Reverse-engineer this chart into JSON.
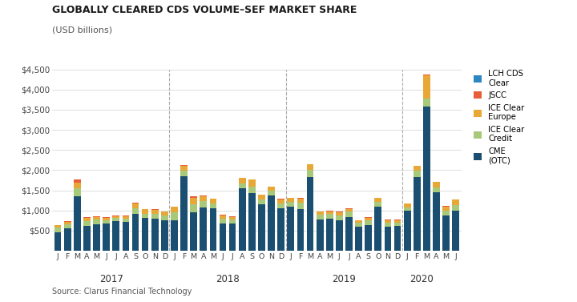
{
  "title": "GLOBALLY CLEARED CDS VOLUME–SEF MARKET SHARE",
  "subtitle": "(USD billions)",
  "source": "Source: Clarus Financial Technology",
  "ylim": [
    0,
    4500
  ],
  "yticks": [
    0,
    500,
    1000,
    1500,
    2000,
    2500,
    3000,
    3500,
    4000,
    4500
  ],
  "ytick_labels": [
    "",
    "$500",
    "$1,000",
    "$1,500",
    "$2,000",
    "$2,500",
    "$3,000",
    "$3,500",
    "$4,000",
    "$4,500"
  ],
  "months": [
    "J",
    "F",
    "M",
    "A",
    "M",
    "J",
    "J",
    "A",
    "S",
    "O",
    "N",
    "D",
    "J",
    "F",
    "M",
    "A",
    "M",
    "J",
    "J",
    "A",
    "S",
    "O",
    "N",
    "D",
    "J",
    "F",
    "M",
    "A",
    "M",
    "J",
    "J",
    "A",
    "S",
    "O",
    "N",
    "D",
    "J",
    "F",
    "M",
    "A",
    "M",
    "J"
  ],
  "year_labels": [
    [
      "2017",
      5.5
    ],
    [
      "2018",
      17.5
    ],
    [
      "2019",
      29.5
    ],
    [
      "2020",
      37.5
    ]
  ],
  "vlines": [
    12,
    24,
    36
  ],
  "stack_keys": [
    "CME (OTC)",
    "ICE Clear Credit",
    "ICE Clear Europe",
    "JSCC",
    "LCH CDS Clear"
  ],
  "stack_colors": [
    "#1b4f72",
    "#a8c87a",
    "#e8a838",
    "#e85d3a",
    "#2e86c1"
  ],
  "legend_labels": [
    "LCH CDS\nClear",
    "JSCC",
    "ICE Clear\nEurope",
    "ICE Clear\nCredit",
    "CME\n(OTC)"
  ],
  "legend_colors": [
    "#2e86c1",
    "#e85d3a",
    "#e8a838",
    "#a8c87a",
    "#1b4f72"
  ],
  "data": {
    "CME (OTC)": [
      460,
      555,
      1350,
      615,
      650,
      680,
      730,
      710,
      920,
      810,
      790,
      760,
      760,
      1840,
      950,
      1070,
      1050,
      680,
      670,
      1540,
      1440,
      1150,
      1380,
      1050,
      1090,
      1040,
      1830,
      770,
      790,
      750,
      830,
      590,
      630,
      1090,
      600,
      610,
      990,
      1830,
      3580,
      1460,
      870,
      990
    ],
    "ICE Clear Credit": [
      110,
      95,
      200,
      125,
      115,
      75,
      75,
      85,
      125,
      105,
      125,
      115,
      195,
      145,
      195,
      165,
      125,
      105,
      95,
      125,
      155,
      115,
      105,
      115,
      125,
      145,
      175,
      125,
      115,
      125,
      135,
      95,
      115,
      115,
      85,
      85,
      85,
      155,
      195,
      115,
      115,
      135
    ],
    "ICE Clear Europe": [
      60,
      65,
      140,
      75,
      75,
      65,
      55,
      65,
      125,
      115,
      105,
      95,
      135,
      115,
      175,
      125,
      115,
      95,
      75,
      145,
      175,
      125,
      105,
      115,
      95,
      115,
      135,
      75,
      75,
      85,
      75,
      65,
      75,
      105,
      75,
      65,
      95,
      115,
      580,
      125,
      115,
      145
    ],
    "JSCC": [
      8,
      18,
      75,
      18,
      12,
      12,
      8,
      8,
      18,
      8,
      8,
      8,
      12,
      22,
      25,
      8,
      8,
      8,
      8,
      8,
      8,
      8,
      8,
      8,
      8,
      8,
      12,
      8,
      8,
      8,
      8,
      8,
      8,
      8,
      8,
      8,
      8,
      8,
      12,
      8,
      8,
      8
    ],
    "LCH CDS Clear": [
      0,
      0,
      0,
      0,
      0,
      0,
      0,
      0,
      0,
      0,
      0,
      0,
      0,
      0,
      0,
      0,
      0,
      0,
      0,
      0,
      0,
      0,
      0,
      0,
      0,
      0,
      0,
      0,
      0,
      0,
      0,
      0,
      0,
      0,
      0,
      0,
      0,
      0,
      0,
      0,
      0,
      0
    ]
  }
}
